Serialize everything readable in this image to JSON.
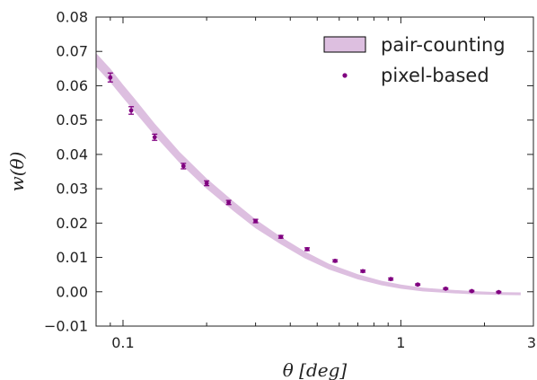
{
  "chart_data": {
    "type": "scatter",
    "xscale": "log",
    "xlim": [
      0.08,
      3
    ],
    "ylim": [
      -0.01,
      0.08
    ],
    "xlabel": "θ [deg]",
    "ylabel": "w(θ)",
    "xticks": [
      {
        "value": 0.1,
        "label": "0.1"
      },
      {
        "value": 1,
        "label": "1"
      },
      {
        "value": 3,
        "label": "3"
      }
    ],
    "yticks": [
      {
        "value": -0.01,
        "label": "−0.01"
      },
      {
        "value": 0.0,
        "label": "0.00"
      },
      {
        "value": 0.01,
        "label": "0.01"
      },
      {
        "value": 0.02,
        "label": "0.02"
      },
      {
        "value": 0.03,
        "label": "0.03"
      },
      {
        "value": 0.04,
        "label": "0.04"
      },
      {
        "value": 0.05,
        "label": "0.05"
      },
      {
        "value": 0.06,
        "label": "0.06"
      },
      {
        "value": 0.07,
        "label": "0.07"
      },
      {
        "value": 0.08,
        "label": "0.08"
      }
    ],
    "grid": false,
    "legend": {
      "position": "top-right"
    },
    "series": [
      {
        "name": "pair-counting",
        "kind": "band",
        "color": "#ddbfe0",
        "x": [
          0.08,
          0.09,
          0.1,
          0.11,
          0.13,
          0.16,
          0.2,
          0.25,
          0.3,
          0.37,
          0.45,
          0.55,
          0.7,
          0.85,
          1.0,
          1.2,
          1.5,
          1.8,
          2.2,
          2.7
        ],
        "lower": [
          0.0655,
          0.061,
          0.0565,
          0.0525,
          0.0455,
          0.0375,
          0.03,
          0.0235,
          0.0185,
          0.0138,
          0.0098,
          0.0065,
          0.0036,
          0.0019,
          0.0009,
          0.0001,
          -0.0004,
          -0.0007,
          -0.0009,
          -0.001
        ],
        "upper": [
          0.0695,
          0.065,
          0.0603,
          0.0563,
          0.049,
          0.0407,
          0.033,
          0.0263,
          0.0211,
          0.016,
          0.0118,
          0.0082,
          0.0051,
          0.0032,
          0.0021,
          0.0012,
          0.0006,
          0.0002,
          -0.0001,
          -0.0002
        ]
      },
      {
        "name": "pixel-based",
        "kind": "errorbar",
        "color": "#800080",
        "x": [
          0.09,
          0.107,
          0.13,
          0.165,
          0.2,
          0.24,
          0.3,
          0.37,
          0.46,
          0.58,
          0.73,
          0.92,
          1.15,
          1.45,
          1.8,
          2.25
        ],
        "y": [
          0.0624,
          0.0528,
          0.045,
          0.0366,
          0.0316,
          0.026,
          0.0206,
          0.016,
          0.0124,
          0.009,
          0.006,
          0.0037,
          0.0021,
          0.0009,
          0.0002,
          -0.0001
        ],
        "yerr": [
          0.0013,
          0.0011,
          0.0009,
          0.0008,
          0.0007,
          0.0006,
          0.0005,
          0.0004,
          0.0004,
          0.0003,
          0.0003,
          0.0003,
          0.0002,
          0.0002,
          0.0002,
          0.0002
        ]
      }
    ]
  }
}
